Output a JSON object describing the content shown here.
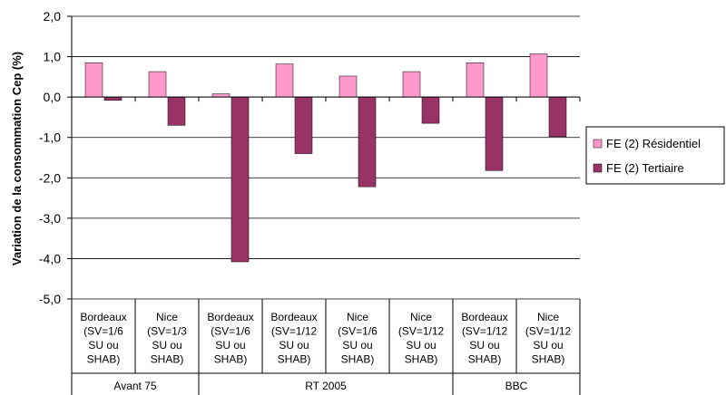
{
  "chart_data": {
    "type": "bar",
    "ylabel": "Variation de la consommation Cep (%)",
    "ylim": [
      -5.0,
      2.0
    ],
    "yticks": [
      "2,0",
      "1,0",
      "0,0",
      "-1,0",
      "-2,0",
      "-3,0",
      "-4,0",
      "-5,0"
    ],
    "ytick_values": [
      2,
      1,
      0,
      -1,
      -2,
      -3,
      -4,
      -5
    ],
    "grid": true,
    "legend_position": "right",
    "categories": [
      [
        "Bordeaux",
        "(SV=1/6",
        "SU ou",
        "SHAB)"
      ],
      [
        "Nice",
        "(SV=1/3",
        "SU ou",
        "SHAB)"
      ],
      [
        "Bordeaux",
        "(SV=1/6",
        "SU ou",
        "SHAB)"
      ],
      [
        "Bordeaux",
        "(SV=1/12",
        "SU ou",
        "SHAB)"
      ],
      [
        "Nice",
        "(SV=1/6",
        "SU ou",
        "SHAB)"
      ],
      [
        "Nice",
        "(SV=1/12",
        "SU ou",
        "SHAB)"
      ],
      [
        "Bordeaux",
        "(SV=1/12",
        "SU ou",
        "SHAB)"
      ],
      [
        "Nice",
        "(SV=1/12",
        "SU ou",
        "SHAB)"
      ]
    ],
    "groups": [
      {
        "label": "Avant 75",
        "span": 2
      },
      {
        "label": "RT 2005",
        "span": 4
      },
      {
        "label": "BBC",
        "span": 2
      }
    ],
    "series": [
      {
        "name": "FE (2) Résidentiel",
        "color": "#ff99cc",
        "values": [
          0.85,
          0.63,
          0.08,
          0.82,
          0.52,
          0.63,
          0.85,
          1.07
        ]
      },
      {
        "name": "FE (2) Tertiaire",
        "color": "#993366",
        "values": [
          -0.08,
          -0.7,
          -4.08,
          -1.4,
          -2.22,
          -0.65,
          -1.82,
          -0.98
        ]
      }
    ]
  }
}
